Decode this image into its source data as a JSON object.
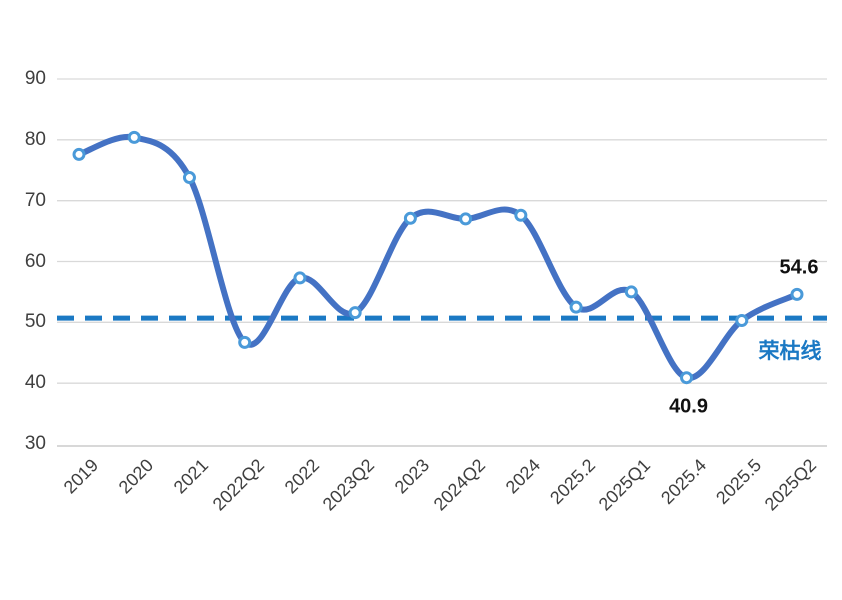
{
  "chart_data": {
    "type": "line",
    "title": "",
    "legend_position": "none",
    "grid": "horizontal",
    "categories": [
      "2019",
      "2020",
      "2021",
      "2022Q2",
      "2022",
      "2023Q2",
      "2023",
      "2024Q2",
      "2024",
      "2025.2",
      "2025Q1",
      "2025.4",
      "2025.5",
      "2025Q2"
    ],
    "series": [
      {
        "values": [
          77.6,
          80.4,
          73.8,
          46.7,
          57.3,
          51.6,
          67.1,
          67.0,
          67.6,
          52.5,
          55.0,
          40.9,
          50.3,
          54.6
        ],
        "color": "#4472c4",
        "line_width": 6,
        "smooth": true,
        "marker": "circle",
        "marker_fill": "#ffffff",
        "marker_stroke": "#4a9ad9"
      }
    ],
    "y_axis": {
      "min": 30,
      "max": 90,
      "tick_step": 10,
      "ticks": [
        90,
        80,
        70,
        60,
        50,
        40,
        30
      ]
    },
    "x_axis": {
      "label_rotation_deg": 45
    },
    "threshold_line": {
      "label": "荣枯线",
      "value": 50.7,
      "color": "#1b79c4",
      "style": "dashed"
    },
    "point_labels": [
      {
        "category": "2025.4",
        "text": "40.9",
        "placement": "below"
      },
      {
        "category": "2025Q2",
        "text": "54.6",
        "placement": "above"
      }
    ],
    "colors": {
      "gridline": "#d9d9d9",
      "axis_line": "#cccccc",
      "tick_label": "#3f3f3f",
      "point_label": "#111111"
    }
  }
}
